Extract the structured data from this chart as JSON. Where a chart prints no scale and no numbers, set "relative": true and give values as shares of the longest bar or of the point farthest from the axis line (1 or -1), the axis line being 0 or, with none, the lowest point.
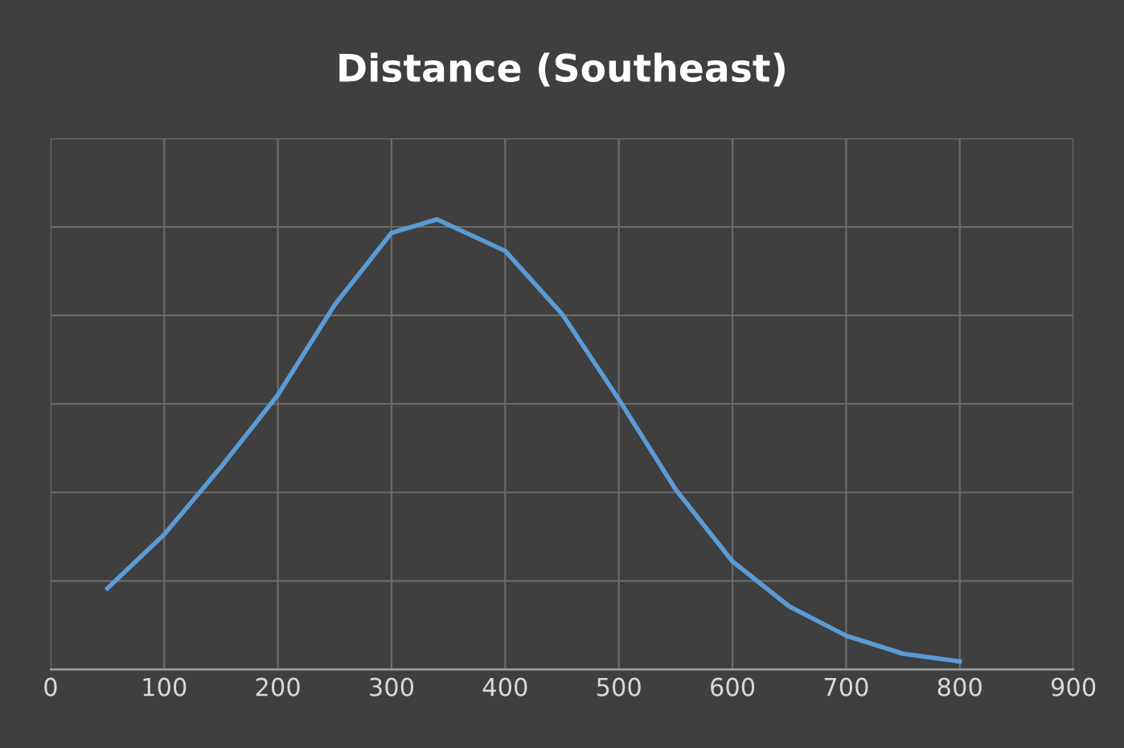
{
  "chart_data": {
    "type": "line",
    "title": "Distance (Southeast)",
    "x": [
      50,
      100,
      150,
      200,
      250,
      300,
      340,
      400,
      450,
      500,
      550,
      600,
      650,
      700,
      750,
      800
    ],
    "series": [
      {
        "color": "#5b9bd5",
        "values": [
          0.18,
          0.3,
          0.45,
          0.61,
          0.81,
          0.97,
          1.0,
          0.93,
          0.79,
          0.6,
          0.4,
          0.24,
          0.14,
          0.075,
          0.035,
          0.018
        ]
      }
    ],
    "relative": true,
    "xlim": [
      0,
      900
    ],
    "xticks": [
      0,
      100,
      200,
      300,
      400,
      500,
      600,
      700,
      800,
      900
    ],
    "grid": true,
    "tick_labels": "x",
    "marker": "none",
    "line_style": "solid"
  }
}
